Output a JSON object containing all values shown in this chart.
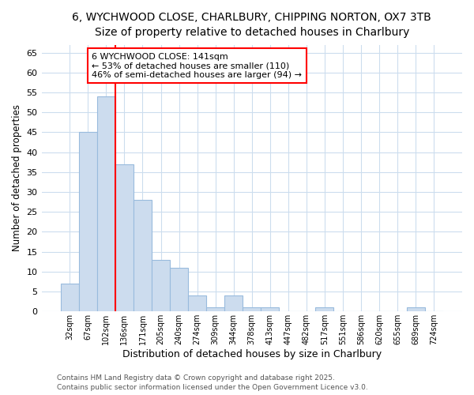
{
  "title_line1": "6, WYCHWOOD CLOSE, CHARLBURY, CHIPPING NORTON, OX7 3TB",
  "title_line2": "Size of property relative to detached houses in Charlbury",
  "xlabel": "Distribution of detached houses by size in Charlbury",
  "ylabel": "Number of detached properties",
  "bin_labels": [
    "32sqm",
    "67sqm",
    "102sqm",
    "136sqm",
    "171sqm",
    "205sqm",
    "240sqm",
    "274sqm",
    "309sqm",
    "344sqm",
    "378sqm",
    "413sqm",
    "447sqm",
    "482sqm",
    "517sqm",
    "551sqm",
    "586sqm",
    "620sqm",
    "655sqm",
    "689sqm",
    "724sqm"
  ],
  "bar_heights": [
    7,
    45,
    54,
    37,
    28,
    13,
    11,
    4,
    1,
    4,
    1,
    1,
    0,
    0,
    1,
    0,
    0,
    0,
    0,
    1,
    0
  ],
  "bar_color": "#ccdcee",
  "bar_edge_color": "#99bbdd",
  "red_line_index": 3,
  "annotation_line1": "6 WYCHWOOD CLOSE: 141sqm",
  "annotation_line2": "← 53% of detached houses are smaller (110)",
  "annotation_line3": "46% of semi-detached houses are larger (94) →",
  "ylim": [
    0,
    67
  ],
  "yticks": [
    0,
    5,
    10,
    15,
    20,
    25,
    30,
    35,
    40,
    45,
    50,
    55,
    60,
    65
  ],
  "footer_line1": "Contains HM Land Registry data © Crown copyright and database right 2025.",
  "footer_line2": "Contains public sector information licensed under the Open Government Licence v3.0.",
  "bg_color": "#ffffff",
  "grid_color": "#ccddee",
  "title1_fontsize": 10,
  "title2_fontsize": 9
}
